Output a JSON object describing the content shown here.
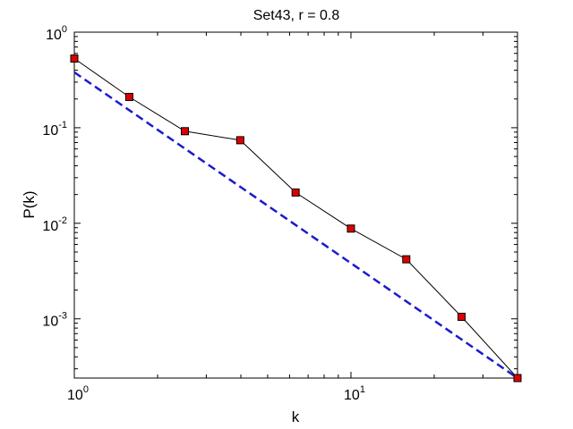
{
  "chart_data": {
    "type": "line",
    "title": "Set43, r = 0.8",
    "xlabel": "k",
    "ylabel": "P(k)",
    "xscale": "log",
    "yscale": "log",
    "xlim": [
      1,
      40
    ],
    "ylim": [
      0.00024,
      1
    ],
    "x_ticks": [
      {
        "value": 1,
        "base": "10",
        "exp": "0"
      },
      {
        "value": 10,
        "base": "10",
        "exp": "1"
      }
    ],
    "y_ticks": [
      {
        "value": 1,
        "base": "10",
        "exp": "0"
      },
      {
        "value": 0.1,
        "base": "10",
        "exp": "-1"
      },
      {
        "value": 0.01,
        "base": "10",
        "exp": "-2"
      },
      {
        "value": 0.001,
        "base": "10",
        "exp": "-3"
      }
    ],
    "grid": false,
    "series": [
      {
        "style": "solid-square-markers",
        "color": "#000000",
        "marker_color": "#dd0000",
        "x": [
          1,
          1.58,
          2.51,
          3.98,
          6.31,
          10,
          15.85,
          25.12,
          40
        ],
        "y": [
          0.53,
          0.21,
          0.092,
          0.074,
          0.021,
          0.0088,
          0.0042,
          0.00105,
          0.00024
        ]
      },
      {
        "style": "dashed",
        "color": "#1a1ad0",
        "x": [
          1,
          40
        ],
        "y": [
          0.38,
          0.00024
        ]
      }
    ]
  }
}
